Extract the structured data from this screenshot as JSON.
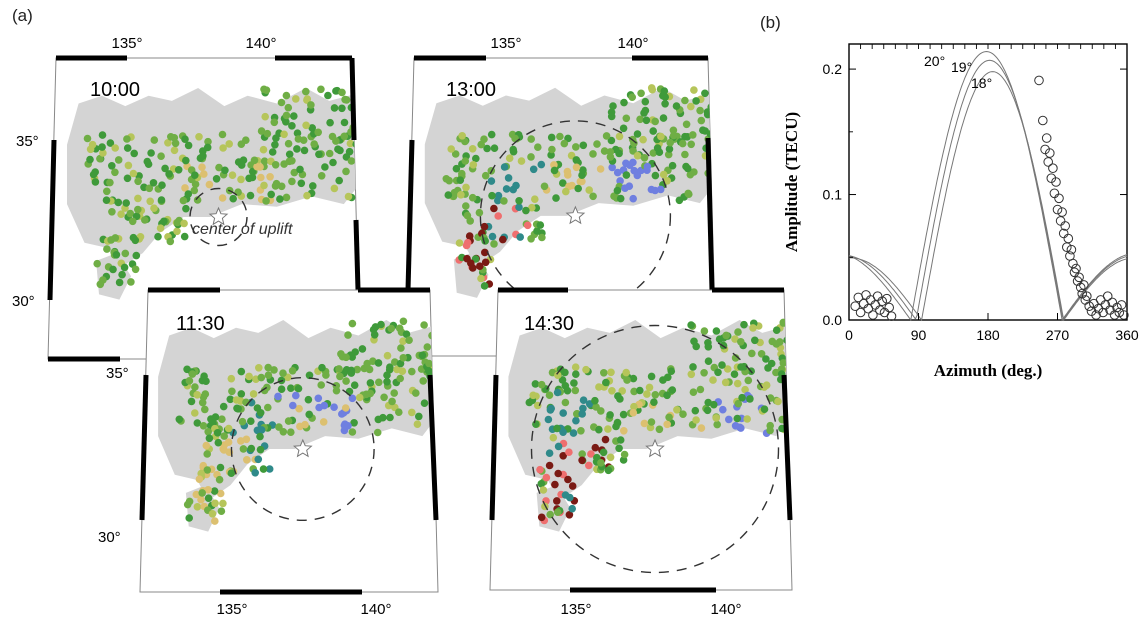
{
  "panel_a_label": "(a)",
  "panel_b_label": "(b)",
  "colors": {
    "land": "#d4d4d4",
    "green": "#6fae45",
    "dark_green": "#3f9a3a",
    "yellow_green": "#b6c55a",
    "blue": "#6f7fe0",
    "teal": "#2f8a8a",
    "red": "#ef6f6f",
    "dark_red": "#7a1a14",
    "tan": "#dcc070"
  },
  "maps": [
    {
      "time": "10:00",
      "top_lon_ticks": [
        "135°",
        "140°"
      ],
      "lat_ticks": [
        "35°",
        "30°"
      ],
      "annotation": "center of uplift",
      "circle_scale": 0.3
    },
    {
      "time": "13:00",
      "top_lon_ticks": [
        "135°",
        "140°"
      ],
      "circle_scale": 1.0
    },
    {
      "time": "11:30",
      "lat_ticks": [
        "35°",
        "30°"
      ],
      "bottom_lon_ticks": [
        "135°",
        "140°"
      ],
      "circle_scale": 0.75
    },
    {
      "time": "14:30",
      "bottom_lon_ticks": [
        "135°",
        "140°"
      ],
      "circle_scale": 1.3
    }
  ],
  "chart_data": {
    "type": "scatter",
    "xlabel": "Azimuth (deg.)",
    "ylabel": "Amplitude (TECU)",
    "xlim": [
      0,
      360
    ],
    "ylim": [
      0,
      0.22
    ],
    "x_ticks": [
      "0",
      "90",
      "180",
      "270",
      "360"
    ],
    "y_ticks": [
      "0.0",
      "0.1",
      "0.2"
    ],
    "curve_labels": [
      "20°",
      "19°",
      "18°"
    ],
    "curves": [
      {
        "name": "20°",
        "peak": 0.214,
        "center": 178,
        "width": 98
      },
      {
        "name": "19°",
        "peak": 0.207,
        "center": 182,
        "width": 95
      },
      {
        "name": "18°",
        "peak": 0.198,
        "center": 186,
        "width": 92
      }
    ],
    "points": [
      [
        8,
        0.011
      ],
      [
        12,
        0.018
      ],
      [
        15,
        0.006
      ],
      [
        19,
        0.013
      ],
      [
        22,
        0.02
      ],
      [
        25,
        0.009
      ],
      [
        28,
        0.016
      ],
      [
        31,
        0.004
      ],
      [
        34,
        0.012
      ],
      [
        37,
        0.019
      ],
      [
        40,
        0.008
      ],
      [
        43,
        0.015
      ],
      [
        46,
        0.006
      ],
      [
        49,
        0.017
      ],
      [
        52,
        0.01
      ],
      [
        55,
        0.003
      ],
      [
        246,
        0.191
      ],
      [
        251,
        0.159
      ],
      [
        254,
        0.136
      ],
      [
        256,
        0.145
      ],
      [
        258,
        0.126
      ],
      [
        260,
        0.133
      ],
      [
        262,
        0.113
      ],
      [
        264,
        0.121
      ],
      [
        266,
        0.101
      ],
      [
        268,
        0.11
      ],
      [
        270,
        0.088
      ],
      [
        272,
        0.097
      ],
      [
        274,
        0.079
      ],
      [
        276,
        0.086
      ],
      [
        278,
        0.069
      ],
      [
        280,
        0.075
      ],
      [
        282,
        0.058
      ],
      [
        284,
        0.065
      ],
      [
        286,
        0.051
      ],
      [
        288,
        0.056
      ],
      [
        290,
        0.045
      ],
      [
        292,
        0.038
      ],
      [
        294,
        0.041
      ],
      [
        296,
        0.031
      ],
      [
        298,
        0.034
      ],
      [
        300,
        0.026
      ],
      [
        302,
        0.021
      ],
      [
        304,
        0.028
      ],
      [
        306,
        0.016
      ],
      [
        308,
        0.019
      ],
      [
        311,
        0.011
      ],
      [
        314,
        0.007
      ],
      [
        317,
        0.013
      ],
      [
        320,
        0.004
      ],
      [
        323,
        0.009
      ],
      [
        326,
        0.016
      ],
      [
        329,
        0.006
      ],
      [
        332,
        0.012
      ],
      [
        335,
        0.019
      ],
      [
        338,
        0.008
      ],
      [
        341,
        0.014
      ],
      [
        344,
        0.004
      ],
      [
        347,
        0.01
      ],
      [
        350,
        0.006
      ],
      [
        353,
        0.012
      ],
      [
        356,
        0.004
      ]
    ]
  }
}
